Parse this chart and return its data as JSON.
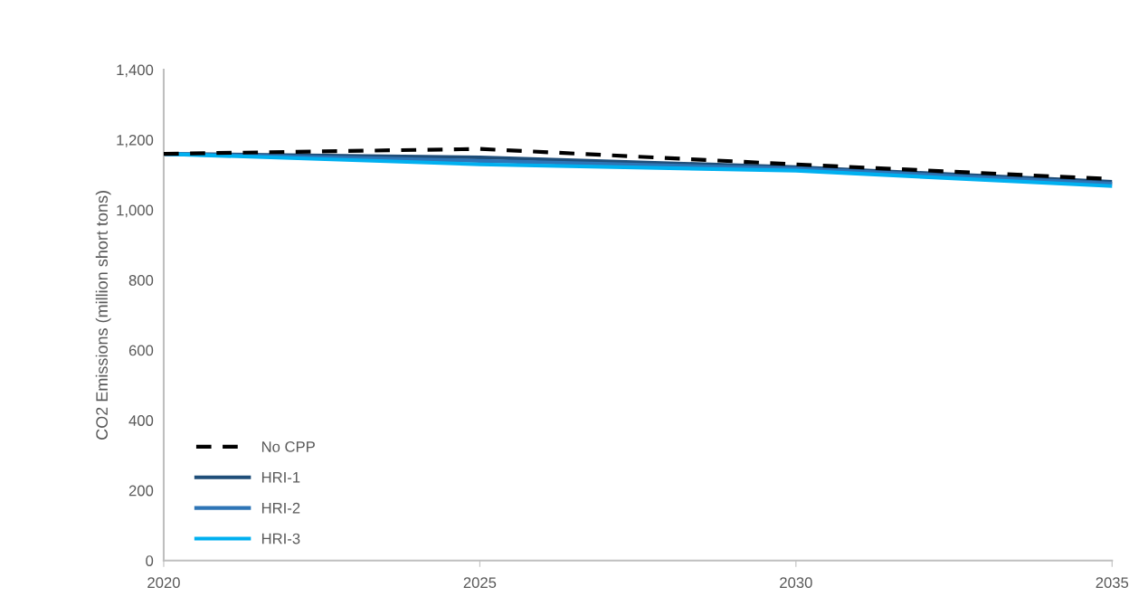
{
  "chart_data": {
    "type": "line",
    "ylabel": "CO2 Emissions (million short tons)",
    "x": [
      2020,
      2025,
      2030,
      2035
    ],
    "xlim": [
      2020,
      2035
    ],
    "xticks": [
      2020,
      2025,
      2030,
      2035
    ],
    "ylim": [
      0,
      1400
    ],
    "yticks": [
      {
        "value": 0,
        "label": "0"
      },
      {
        "value": 200,
        "label": "200"
      },
      {
        "value": 400,
        "label": "400"
      },
      {
        "value": 600,
        "label": "600"
      },
      {
        "value": 800,
        "label": "800"
      },
      {
        "value": 1000,
        "label": "1,000"
      },
      {
        "value": 1200,
        "label": "1,200"
      },
      {
        "value": 1400,
        "label": "1,400"
      }
    ],
    "grid": false,
    "legend": "bottom left",
    "marker": "none",
    "series": [
      {
        "name": "No CPP",
        "color": "#000000",
        "line_style": "dashed",
        "values": [
          1160,
          1174,
          1130,
          1088
        ]
      },
      {
        "name": "HRI-1",
        "color": "#1f4e79",
        "values": [
          1160,
          1150,
          1122,
          1080
        ]
      },
      {
        "name": "HRI-2",
        "color": "#2e75b6",
        "values": [
          1160,
          1140,
          1118,
          1075
        ]
      },
      {
        "name": "HRI-3",
        "color": "#00b0f0",
        "values": [
          1160,
          1130,
          1112,
          1068
        ]
      }
    ]
  }
}
